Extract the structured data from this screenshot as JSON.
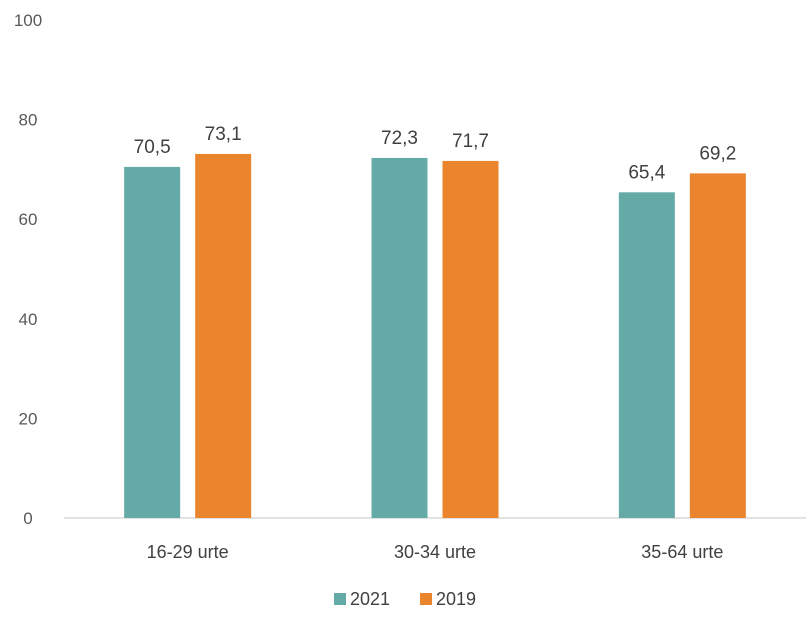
{
  "chart_data": {
    "type": "bar",
    "categories": [
      "16-29 urte",
      "30-34 urte",
      "35-64 urte"
    ],
    "series": [
      {
        "name": "2021",
        "values": [
          70.5,
          72.3,
          65.4
        ],
        "labels": [
          "70,5",
          "72,3",
          "65,4"
        ],
        "color": "#64AAA7"
      },
      {
        "name": "2019",
        "values": [
          73.1,
          71.7,
          69.2
        ],
        "labels": [
          "73,1",
          "71,7",
          "69,2"
        ],
        "color": "#EA852D"
      }
    ],
    "ylim": [
      0,
      100
    ],
    "yticks": [
      0,
      20,
      40,
      60,
      80,
      100
    ],
    "title": "",
    "xlabel": "",
    "ylabel": "",
    "grid": false,
    "legend": "bottom"
  }
}
